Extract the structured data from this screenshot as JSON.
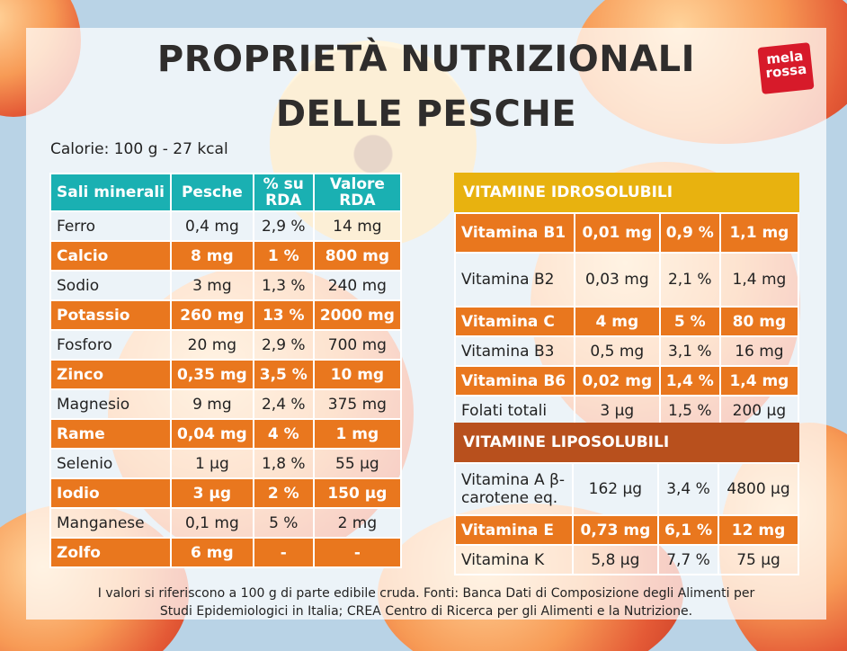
{
  "title_line1": "PROPRIETÀ NUTRIZIONALI",
  "title_line2": "DELLE PESCHE",
  "logo_text": "mela rossa",
  "calories": "Calorie: 100 g - 27 kcal",
  "minerals": {
    "headers": [
      "Sali minerali",
      "Pesche",
      "% su RDA",
      "Valore RDA"
    ],
    "rows": [
      [
        "Ferro",
        "0,4 mg",
        "2,9 %",
        "14 mg"
      ],
      [
        "Calcio",
        "8 mg",
        "1 %",
        "800 mg"
      ],
      [
        "Sodio",
        "3 mg",
        "1,3 %",
        "240 mg"
      ],
      [
        "Potassio",
        "260 mg",
        "13 %",
        "2000 mg"
      ],
      [
        "Fosforo",
        "20 mg",
        "2,9 %",
        "700 mg"
      ],
      [
        "Zinco",
        "0,35 mg",
        "3,5 %",
        "10 mg"
      ],
      [
        "Magnesio",
        "9 mg",
        "2,4 %",
        "375 mg"
      ],
      [
        "Rame",
        "0,04 mg",
        "4 %",
        "1 mg"
      ],
      [
        "Selenio",
        "1 µg",
        "1,8 %",
        "55 µg"
      ],
      [
        "Iodio",
        "3 µg",
        "2 %",
        "150 µg"
      ],
      [
        "Manganese",
        "0,1 mg",
        "5 %",
        "2 mg"
      ],
      [
        "Zolfo",
        "6 mg",
        "-",
        "-"
      ]
    ]
  },
  "vitamins_water": {
    "title": "VITAMINE IDROSOLUBILI",
    "rows": [
      [
        "Vitamina B1",
        "0,01 mg",
        "0,9 %",
        "1,1 mg"
      ],
      [
        "Vitamina B2",
        "0,03 mg",
        "2,1 %",
        "1,4 mg"
      ],
      [
        "Vitamina C",
        "4 mg",
        "5 %",
        "80 mg"
      ],
      [
        "Vitamina B3",
        "0,5 mg",
        "3,1 %",
        "16 mg"
      ],
      [
        "Vitamina B6",
        "0,02 mg",
        "1,4 %",
        "1,4 mg"
      ],
      [
        "Folati totali",
        "3 µg",
        "1,5 %",
        "200 µg"
      ]
    ]
  },
  "vitamins_fat": {
    "title": "VITAMINE LIPOSOLUBILI",
    "rows": [
      [
        "Vitamina A β-carotene eq.",
        "162 µg",
        "3,4 %",
        "4800 µg"
      ],
      [
        "Vitamina E",
        "0,73 mg",
        "6,1 %",
        "12 mg"
      ],
      [
        "Vitamina K",
        "5,8 µg",
        "7,7 %",
        "75 µg"
      ]
    ]
  },
  "footer_line1": "I valori si riferiscono a 100 g di parte edibile cruda. Fonti: Banca Dati di Composizione degli Alimenti per",
  "footer_line2": "Studi Epidemiologici in Italia; CREA Centro di Ricerca per gli Alimenti e la Nutrizione.",
  "colors": {
    "teal": "#1ab0b2",
    "orange": "#e9771e",
    "yellow": "#e8b20f",
    "brown": "#b8501d"
  }
}
